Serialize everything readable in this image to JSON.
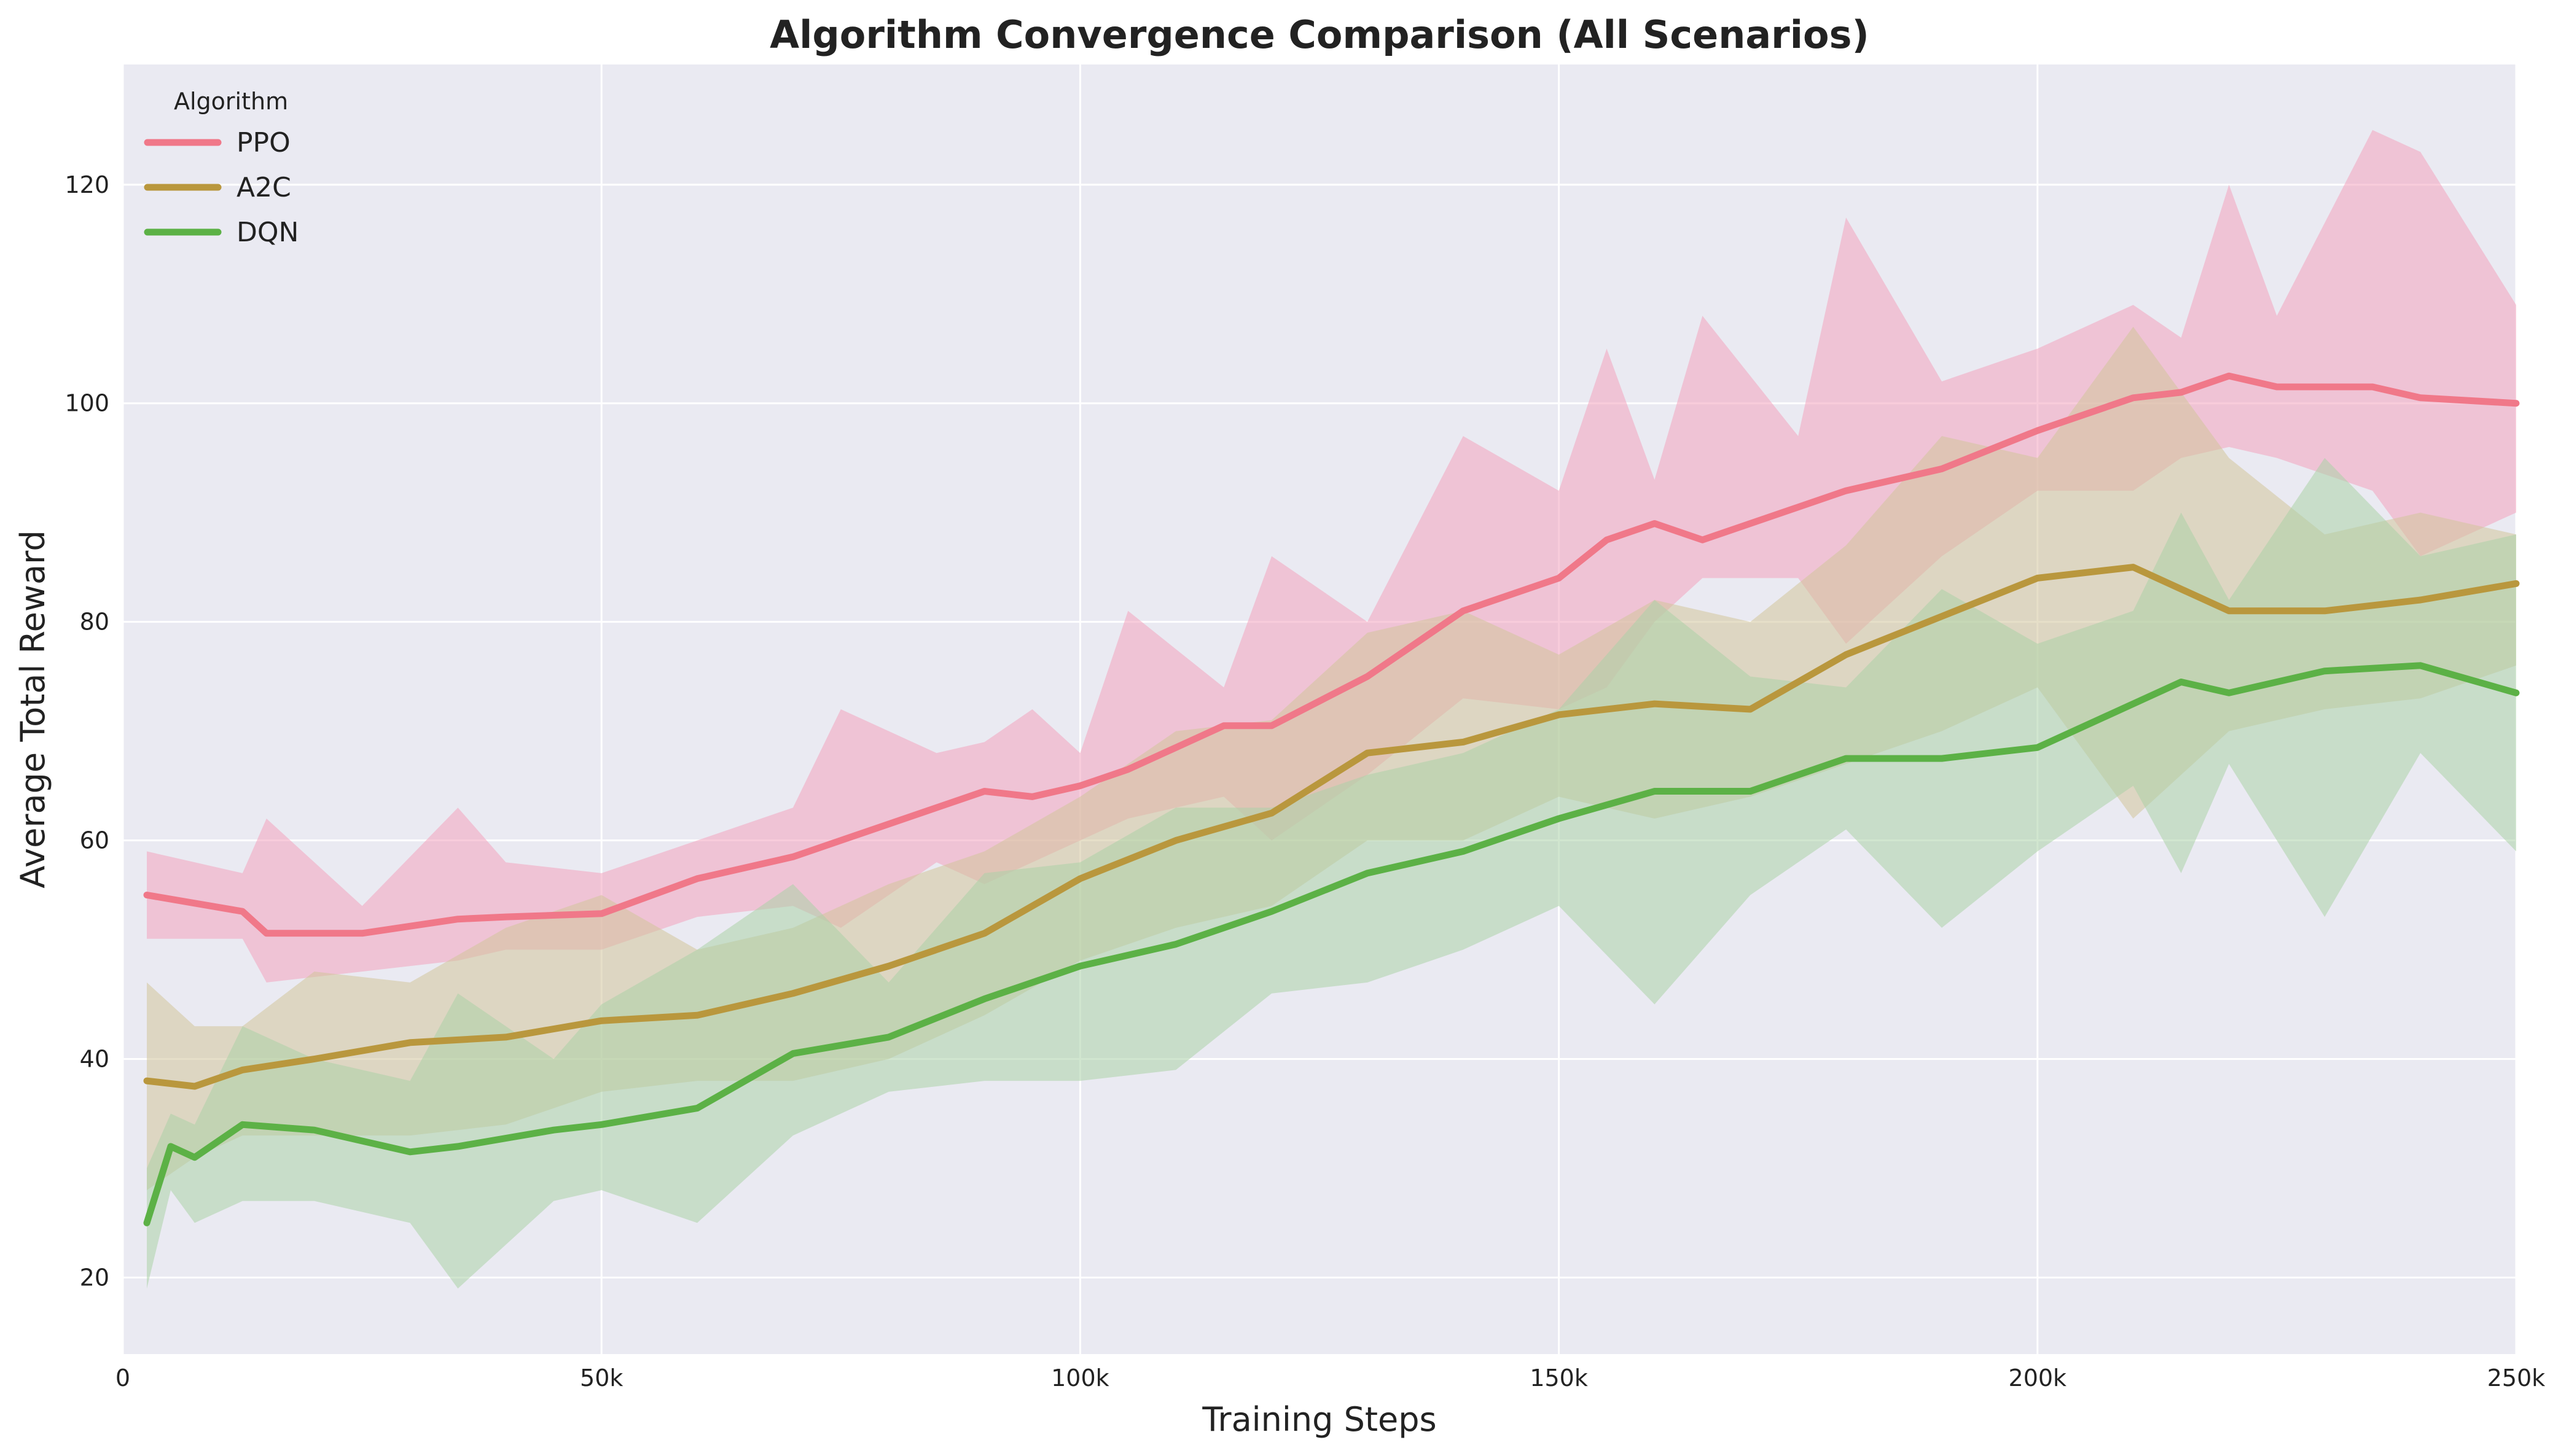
{
  "chart_data": {
    "type": "line",
    "title": "Algorithm Convergence Comparison (All Scenarios)",
    "xlabel": "Training Steps",
    "ylabel": "Average Total Reward",
    "xlim": [
      0,
      250000
    ],
    "ylim": [
      13,
      131
    ],
    "grid": true,
    "legend": {
      "title": "Algorithm",
      "placement": "top-left"
    },
    "xticks": [
      {
        "value": 0,
        "label": "0"
      },
      {
        "value": 50000,
        "label": "50k"
      },
      {
        "value": 100000,
        "label": "100k"
      },
      {
        "value": 150000,
        "label": "150k"
      },
      {
        "value": 200000,
        "label": "200k"
      },
      {
        "value": 250000,
        "label": "250k"
      }
    ],
    "yticks": [
      {
        "value": 20,
        "label": "20"
      },
      {
        "value": 40,
        "label": "40"
      },
      {
        "value": 60,
        "label": "60"
      },
      {
        "value": 80,
        "label": "80"
      },
      {
        "value": 100,
        "label": "100"
      },
      {
        "value": 120,
        "label": "120"
      }
    ],
    "series": [
      {
        "name": "PPO",
        "color": "#f07889",
        "band_color": "#f2a3bd",
        "points": [
          [
            2500,
            55.0,
            51,
            59
          ],
          [
            12500,
            53.5,
            51,
            57
          ],
          [
            15000,
            51.5,
            47,
            62
          ],
          [
            25000,
            51.5,
            48,
            54
          ],
          [
            35000,
            52.8,
            49,
            63
          ],
          [
            40000,
            53.0,
            50,
            58
          ],
          [
            50000,
            53.3,
            50,
            57
          ],
          [
            60000,
            56.5,
            53,
            60
          ],
          [
            70000,
            58.5,
            54,
            63
          ],
          [
            75000,
            60.0,
            52,
            72
          ],
          [
            85000,
            63.0,
            58,
            68
          ],
          [
            90000,
            64.5,
            56,
            69
          ],
          [
            95000,
            64.0,
            58,
            72
          ],
          [
            100000,
            65.0,
            60,
            68
          ],
          [
            105000,
            66.5,
            62,
            81
          ],
          [
            115000,
            70.5,
            64,
            74
          ],
          [
            120000,
            70.5,
            60,
            86
          ],
          [
            130000,
            75.0,
            66,
            80
          ],
          [
            140000,
            81.0,
            73,
            97
          ],
          [
            150000,
            84.0,
            72,
            92
          ],
          [
            155000,
            87.5,
            74,
            105
          ],
          [
            160000,
            89.0,
            80,
            93
          ],
          [
            165000,
            87.5,
            84,
            108
          ],
          [
            175000,
            90.5,
            84,
            97
          ],
          [
            180000,
            92.0,
            78,
            117
          ],
          [
            190000,
            94.0,
            86,
            102
          ],
          [
            200000,
            97.5,
            92,
            105
          ],
          [
            210000,
            100.5,
            92,
            109
          ],
          [
            215000,
            101.0,
            95,
            106
          ],
          [
            220000,
            102.5,
            96,
            120
          ],
          [
            225000,
            101.5,
            95,
            108
          ],
          [
            235000,
            101.5,
            92,
            125
          ],
          [
            240000,
            100.5,
            86,
            123
          ],
          [
            250000,
            100.0,
            90,
            109
          ]
        ]
      },
      {
        "name": "A2C",
        "color": "#b9973d",
        "band_color": "#d2c49a",
        "points": [
          [
            2500,
            38.0,
            28,
            47
          ],
          [
            7500,
            37.5,
            31,
            43
          ],
          [
            12500,
            39.0,
            33,
            43
          ],
          [
            20000,
            40.0,
            33,
            48
          ],
          [
            30000,
            41.5,
            33,
            47
          ],
          [
            40000,
            42.0,
            34,
            52
          ],
          [
            50000,
            43.5,
            37,
            55
          ],
          [
            60000,
            44.0,
            38,
            50
          ],
          [
            70000,
            46.0,
            38,
            52
          ],
          [
            80000,
            48.5,
            40,
            56
          ],
          [
            90000,
            51.5,
            44,
            59
          ],
          [
            100000,
            56.5,
            49,
            64
          ],
          [
            110000,
            60.0,
            52,
            70
          ],
          [
            120000,
            62.5,
            54,
            71
          ],
          [
            130000,
            68.0,
            60,
            79
          ],
          [
            140000,
            69.0,
            60,
            81
          ],
          [
            150000,
            71.5,
            64,
            77
          ],
          [
            160000,
            72.5,
            62,
            82
          ],
          [
            170000,
            72.0,
            64,
            80
          ],
          [
            180000,
            77.0,
            67,
            87
          ],
          [
            190000,
            80.5,
            70,
            97
          ],
          [
            200000,
            84.0,
            74,
            95
          ],
          [
            210000,
            85.0,
            62,
            107
          ],
          [
            220000,
            81.0,
            70,
            95
          ],
          [
            230000,
            81.0,
            72,
            88
          ],
          [
            240000,
            82.0,
            73,
            90
          ],
          [
            250000,
            83.5,
            76,
            88
          ]
        ]
      },
      {
        "name": "DQN",
        "color": "#5cb146",
        "band_color": "#acd2a7",
        "points": [
          [
            2500,
            25.0,
            19,
            30
          ],
          [
            5000,
            32.0,
            28,
            35
          ],
          [
            7500,
            31.0,
            25,
            34
          ],
          [
            12500,
            34.0,
            27,
            43
          ],
          [
            20000,
            33.5,
            27,
            40
          ],
          [
            30000,
            31.5,
            25,
            38
          ],
          [
            35000,
            32.0,
            19,
            46
          ],
          [
            45000,
            33.5,
            27,
            40
          ],
          [
            50000,
            34.0,
            28,
            45
          ],
          [
            60000,
            35.5,
            25,
            50
          ],
          [
            70000,
            40.5,
            33,
            56
          ],
          [
            80000,
            42.0,
            37,
            47
          ],
          [
            90000,
            45.5,
            38,
            57
          ],
          [
            100000,
            48.5,
            38,
            58
          ],
          [
            110000,
            50.5,
            39,
            63
          ],
          [
            120000,
            53.5,
            46,
            63
          ],
          [
            130000,
            57.0,
            47,
            66
          ],
          [
            140000,
            59.0,
            50,
            68
          ],
          [
            150000,
            62.0,
            54,
            72
          ],
          [
            160000,
            64.5,
            45,
            82
          ],
          [
            170000,
            64.5,
            55,
            75
          ],
          [
            180000,
            67.5,
            61,
            74
          ],
          [
            190000,
            67.5,
            52,
            83
          ],
          [
            200000,
            68.5,
            59,
            78
          ],
          [
            210000,
            72.5,
            65,
            81
          ],
          [
            215000,
            74.5,
            57,
            90
          ],
          [
            220000,
            73.5,
            67,
            82
          ],
          [
            230000,
            75.5,
            53,
            95
          ],
          [
            240000,
            76.0,
            68,
            86
          ],
          [
            250000,
            73.5,
            59,
            88
          ]
        ]
      }
    ]
  }
}
